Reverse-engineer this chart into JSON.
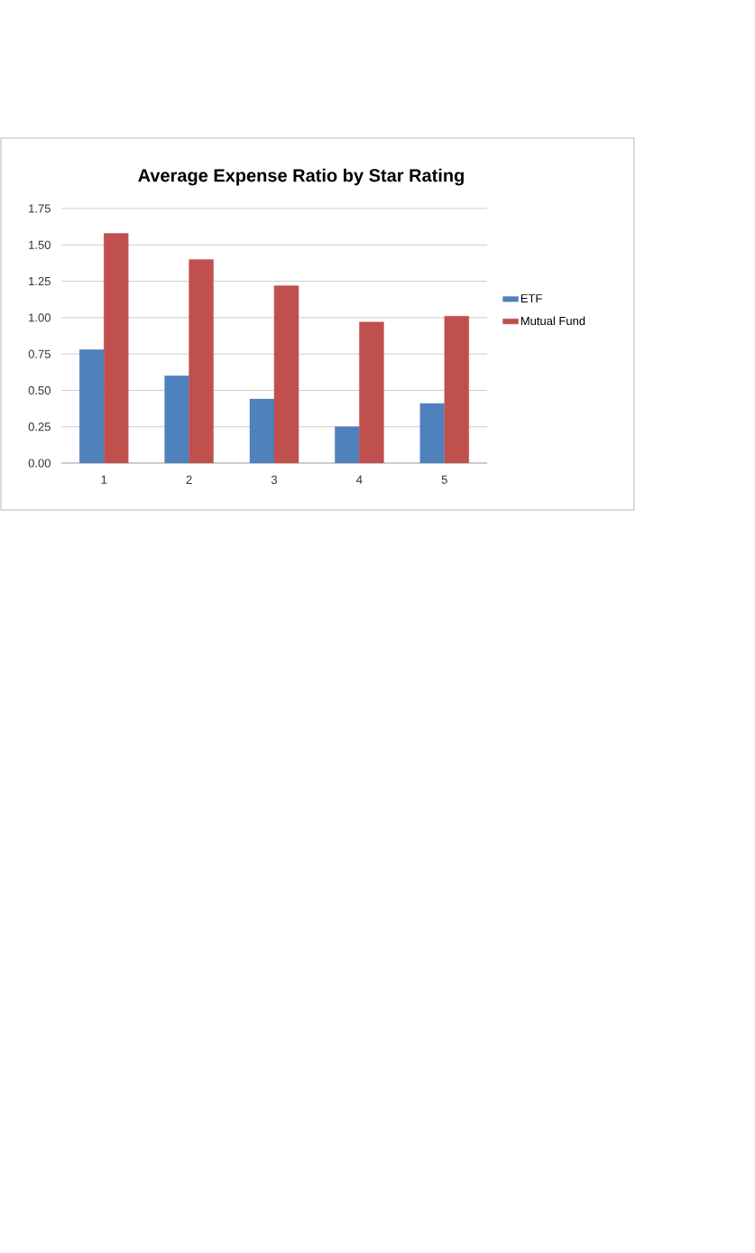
{
  "chart_data": {
    "type": "bar",
    "title": "Average Expense Ratio by Star Rating",
    "categories": [
      "1",
      "2",
      "3",
      "4",
      "5"
    ],
    "series": [
      {
        "name": "ETF",
        "color": "#4f81bd",
        "values": [
          0.78,
          0.6,
          0.44,
          0.25,
          0.41
        ]
      },
      {
        "name": "Mutual Fund",
        "color": "#c0504d",
        "values": [
          1.58,
          1.4,
          1.22,
          0.97,
          1.01
        ]
      }
    ],
    "ylim": [
      0,
      1.75
    ],
    "yticks": [
      {
        "value": 0,
        "label": "0.00"
      },
      {
        "value": 0.25,
        "label": "0.25"
      },
      {
        "value": 0.5,
        "label": "0.50"
      },
      {
        "value": 0.75,
        "label": "0.75"
      },
      {
        "value": 1,
        "label": "1.00"
      },
      {
        "value": 1.25,
        "label": "1.25"
      },
      {
        "value": 1.5,
        "label": "1.50"
      },
      {
        "value": 1.75,
        "label": "1.75"
      }
    ],
    "grid": "y",
    "legend": "right"
  }
}
